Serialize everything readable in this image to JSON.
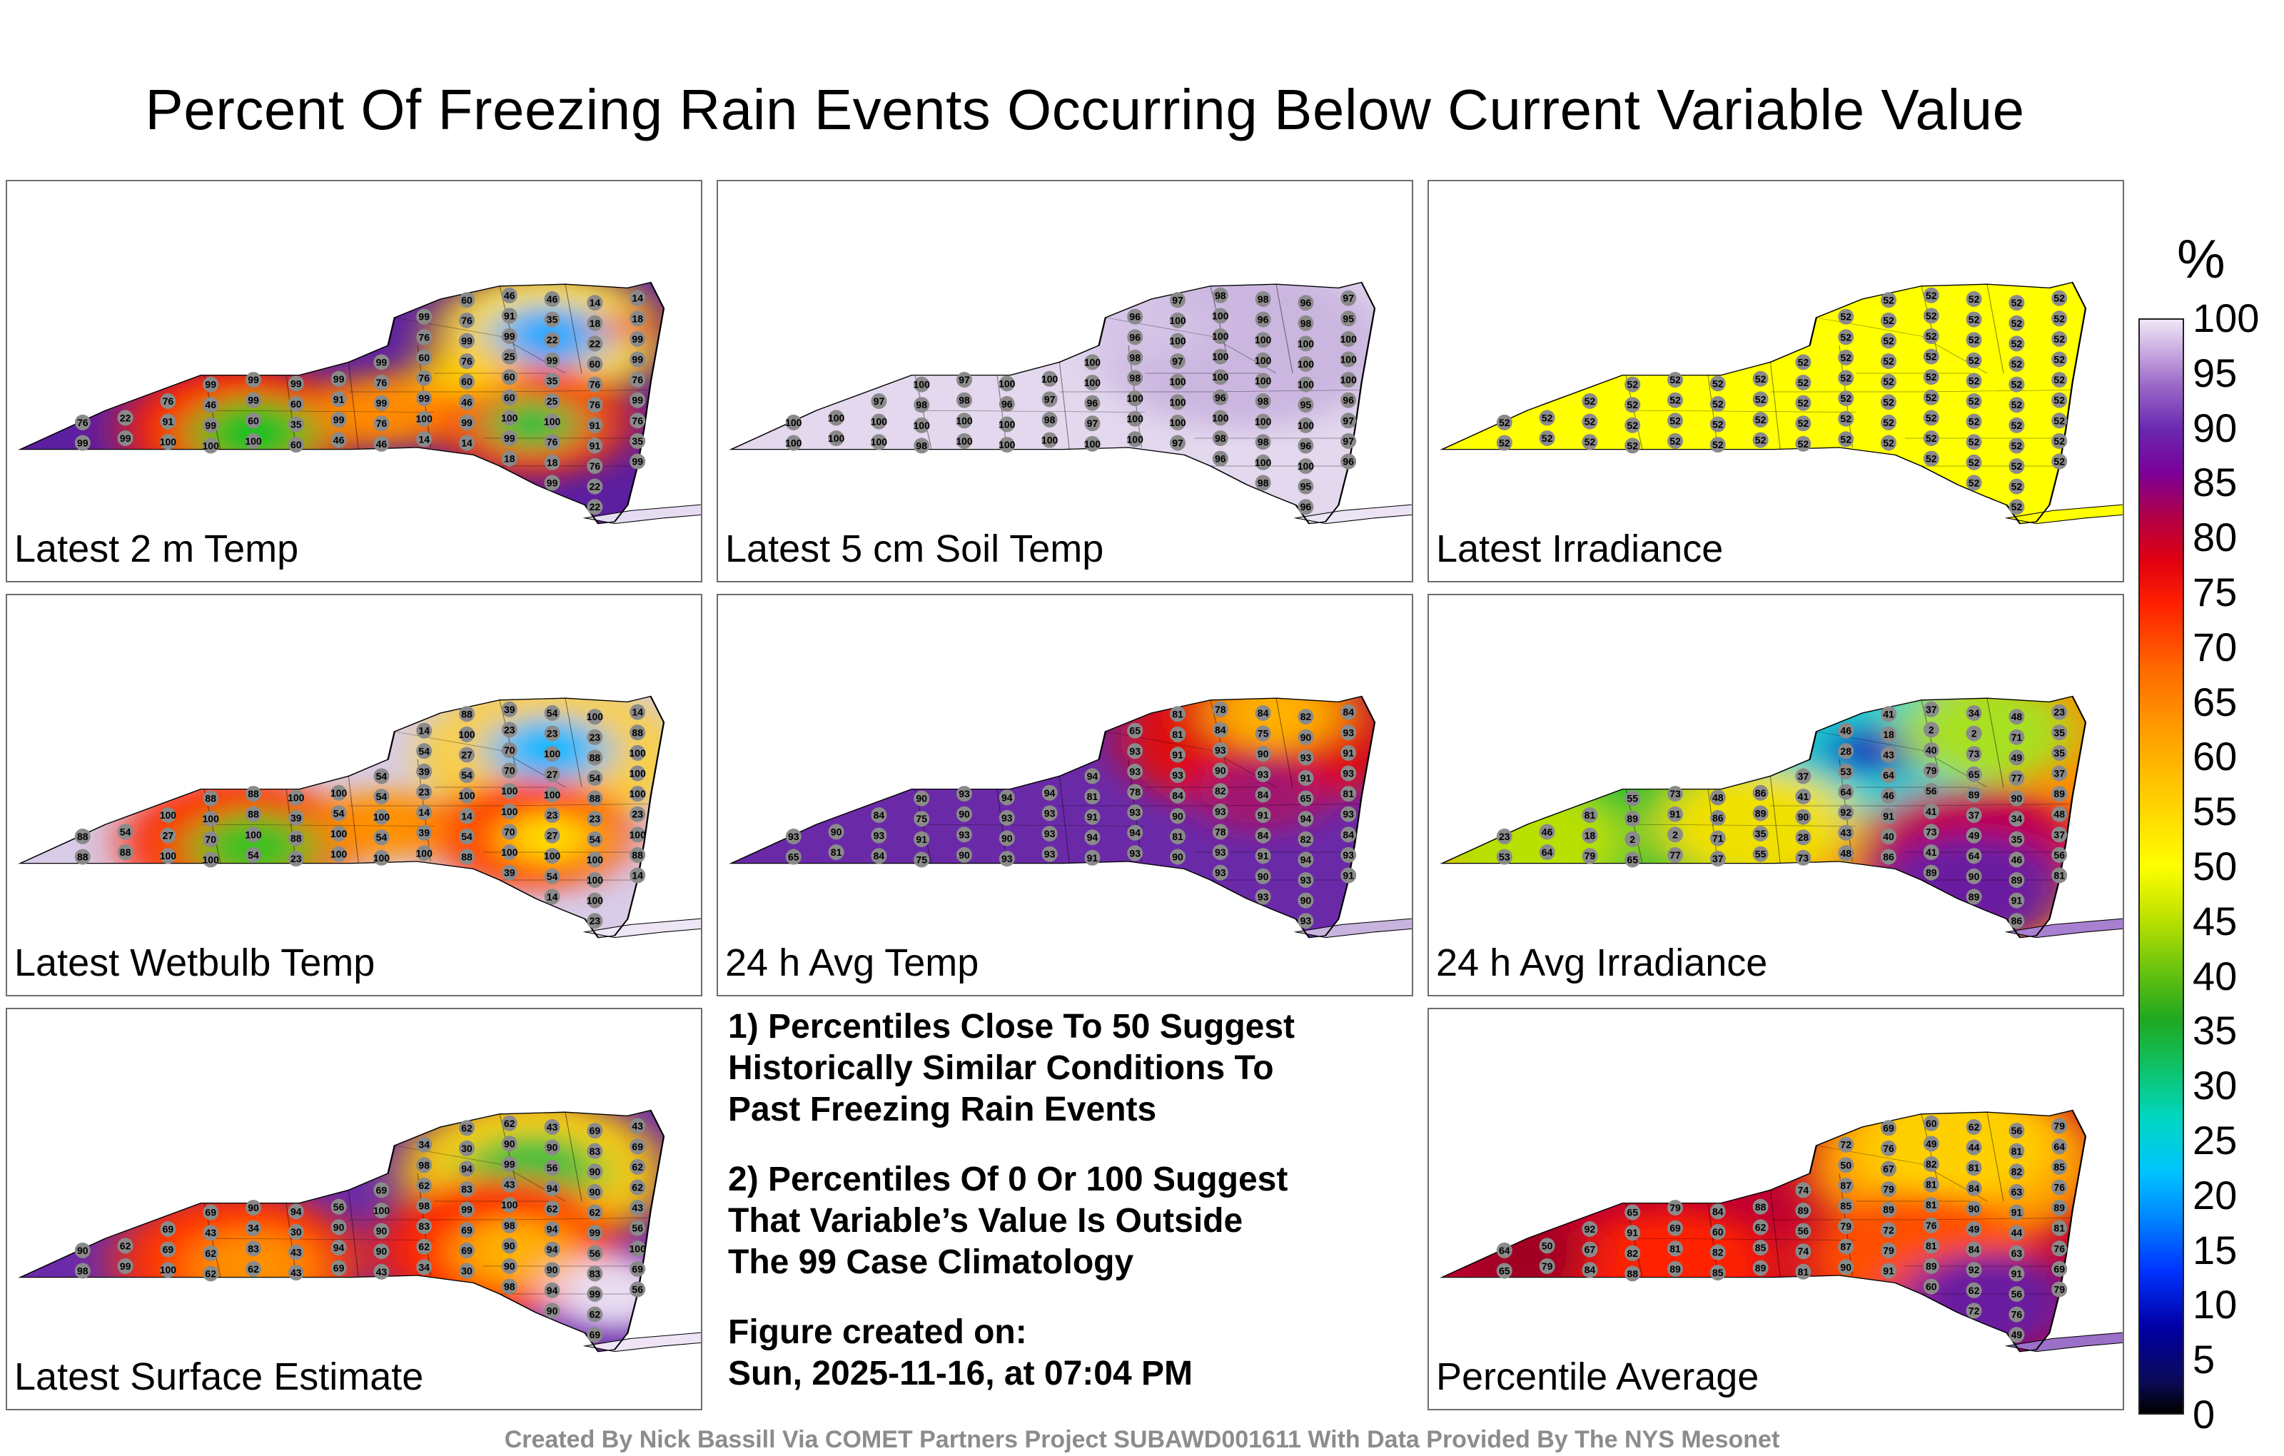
{
  "title": "Percent Of Freezing Rain Events Occurring Below Current Variable Value",
  "panels": [
    {
      "label": "Latest 2 m Temp",
      "scheme": "temp2m"
    },
    {
      "label": "Latest 5 cm Soil Temp",
      "scheme": "soil"
    },
    {
      "label": "Latest Irradiance",
      "scheme": "irr"
    },
    {
      "label": "Latest Wetbulb Temp",
      "scheme": "wetbulb"
    },
    {
      "label": "24 h Avg Temp",
      "scheme": "avgtemp"
    },
    {
      "label": "24 h Avg Irradiance",
      "scheme": "avgirr"
    },
    {
      "label": "Latest Surface Estimate",
      "scheme": "surface"
    },
    {
      "label": "Percentile Average",
      "scheme": "average"
    }
  ],
  "notes": {
    "note1_line1": "1) Percentiles Close To 50 Suggest",
    "note1_line2": "Historically Similar Conditions To",
    "note1_line3": "Past Freezing Rain Events",
    "note2_line1": "2) Percentiles Of 0 Or 100 Suggest",
    "note2_line2": "That Variable’s Value Is Outside",
    "note2_line3": "The 99 Case Climatology",
    "created_label": "Figure created on:",
    "created_value": "Sun, 2025-11-16, at 07:04 PM"
  },
  "colorbar": {
    "unit": "%",
    "ticks": [
      "100",
      "95",
      "90",
      "85",
      "80",
      "75",
      "70",
      "65",
      "60",
      "55",
      "50",
      "45",
      "40",
      "35",
      "30",
      "25",
      "20",
      "15",
      "10",
      "5",
      "0"
    ],
    "range": [
      0,
      100
    ]
  },
  "footer": "Created By Nick Bassill Via COMET Partners Project SUBAWD001611 With Data Provided By The NYS Mesonet",
  "station_values": {
    "temp2m": [
      "60",
      "46",
      "46",
      "14",
      "14",
      "99",
      "76",
      "91",
      "35",
      "18",
      "18",
      "76",
      "99",
      "99",
      "22",
      "22",
      "99",
      "99",
      "60",
      "76",
      "25",
      "99",
      "60",
      "99",
      "99",
      "99",
      "99",
      "99",
      "76",
      "76",
      "60",
      "60",
      "35",
      "76",
      "76",
      "76",
      "46",
      "99",
      "60",
      "91",
      "99",
      "99",
      "46",
      "60",
      "25",
      "76",
      "99",
      "76",
      "22",
      "91",
      "99",
      "60",
      "35",
      "99",
      "76",
      "100",
      "99",
      "100",
      "100",
      "91",
      "76",
      "99",
      "99",
      "100",
      "100",
      "100"
    ],
    "soil": [
      "97",
      "98",
      "98",
      "96",
      "97",
      "96",
      "100",
      "100",
      "96",
      "98",
      "95",
      "96",
      "100",
      "100",
      "100",
      "100",
      "100",
      "100",
      "98",
      "97",
      "100",
      "100",
      "100",
      "100",
      "100",
      "97",
      "100",
      "100",
      "100",
      "98",
      "100",
      "100",
      "100",
      "100",
      "100"
    ],
    "irr": [
      "52"
    ],
    "wetbulb": [
      "88",
      "39",
      "54",
      "100",
      "14",
      "14",
      "100",
      "23",
      "23",
      "23",
      "88",
      "54",
      "27",
      "70",
      "100",
      "88",
      "100",
      "54",
      "39",
      "54",
      "70",
      "27",
      "54",
      "100",
      "88",
      "88",
      "100",
      "100",
      "54",
      "23",
      "100",
      "100",
      "100",
      "88",
      "100",
      "100",
      "100"
    ],
    "avgtemp": [
      "81",
      "78",
      "84",
      "82",
      "84",
      "65",
      "81",
      "84",
      "75",
      "90",
      "93",
      "93",
      "91",
      "93",
      "90",
      "93",
      "91",
      "94",
      "93",
      "93",
      "90",
      "93",
      "91",
      "93",
      "90",
      "93",
      "94",
      "94"
    ],
    "avgirr": [
      "41",
      "37",
      "34",
      "48",
      "23",
      "46",
      "18",
      "2",
      "2",
      "71",
      "35",
      "28",
      "43",
      "40",
      "73",
      "49",
      "35",
      "37",
      "53",
      "64",
      "79",
      "65",
      "77",
      "37",
      "55",
      "73",
      "48",
      "86",
      "41",
      "64",
      "46",
      "56",
      "89",
      "90",
      "89",
      "81",
      "89",
      "91",
      "86",
      "89",
      "90",
      "92",
      "91"
    ],
    "surface": [
      "62",
      "62",
      "43",
      "69",
      "43",
      "34",
      "30",
      "90",
      "90",
      "83",
      "69",
      "98",
      "94",
      "99",
      "56",
      "90",
      "62",
      "69",
      "62",
      "83",
      "43",
      "94",
      "90",
      "62",
      "69",
      "90",
      "94",
      "56",
      "100",
      "98",
      "99",
      "100"
    ],
    "average": [
      "69",
      "60",
      "62",
      "56",
      "79",
      "72",
      "76",
      "49",
      "44",
      "81",
      "64",
      "50",
      "67",
      "82",
      "81",
      "82",
      "85",
      "74",
      "87",
      "79",
      "81",
      "84",
      "63",
      "76",
      "65",
      "79",
      "84",
      "88",
      "89",
      "85",
      "89",
      "81",
      "90",
      "91",
      "89",
      "92",
      "91"
    ]
  },
  "colors": {
    "panel_border": "#6e6e6e",
    "station_fill": "#8a8a8a",
    "footer": "#8c8c8c",
    "irr_fill": "#ffff00"
  }
}
